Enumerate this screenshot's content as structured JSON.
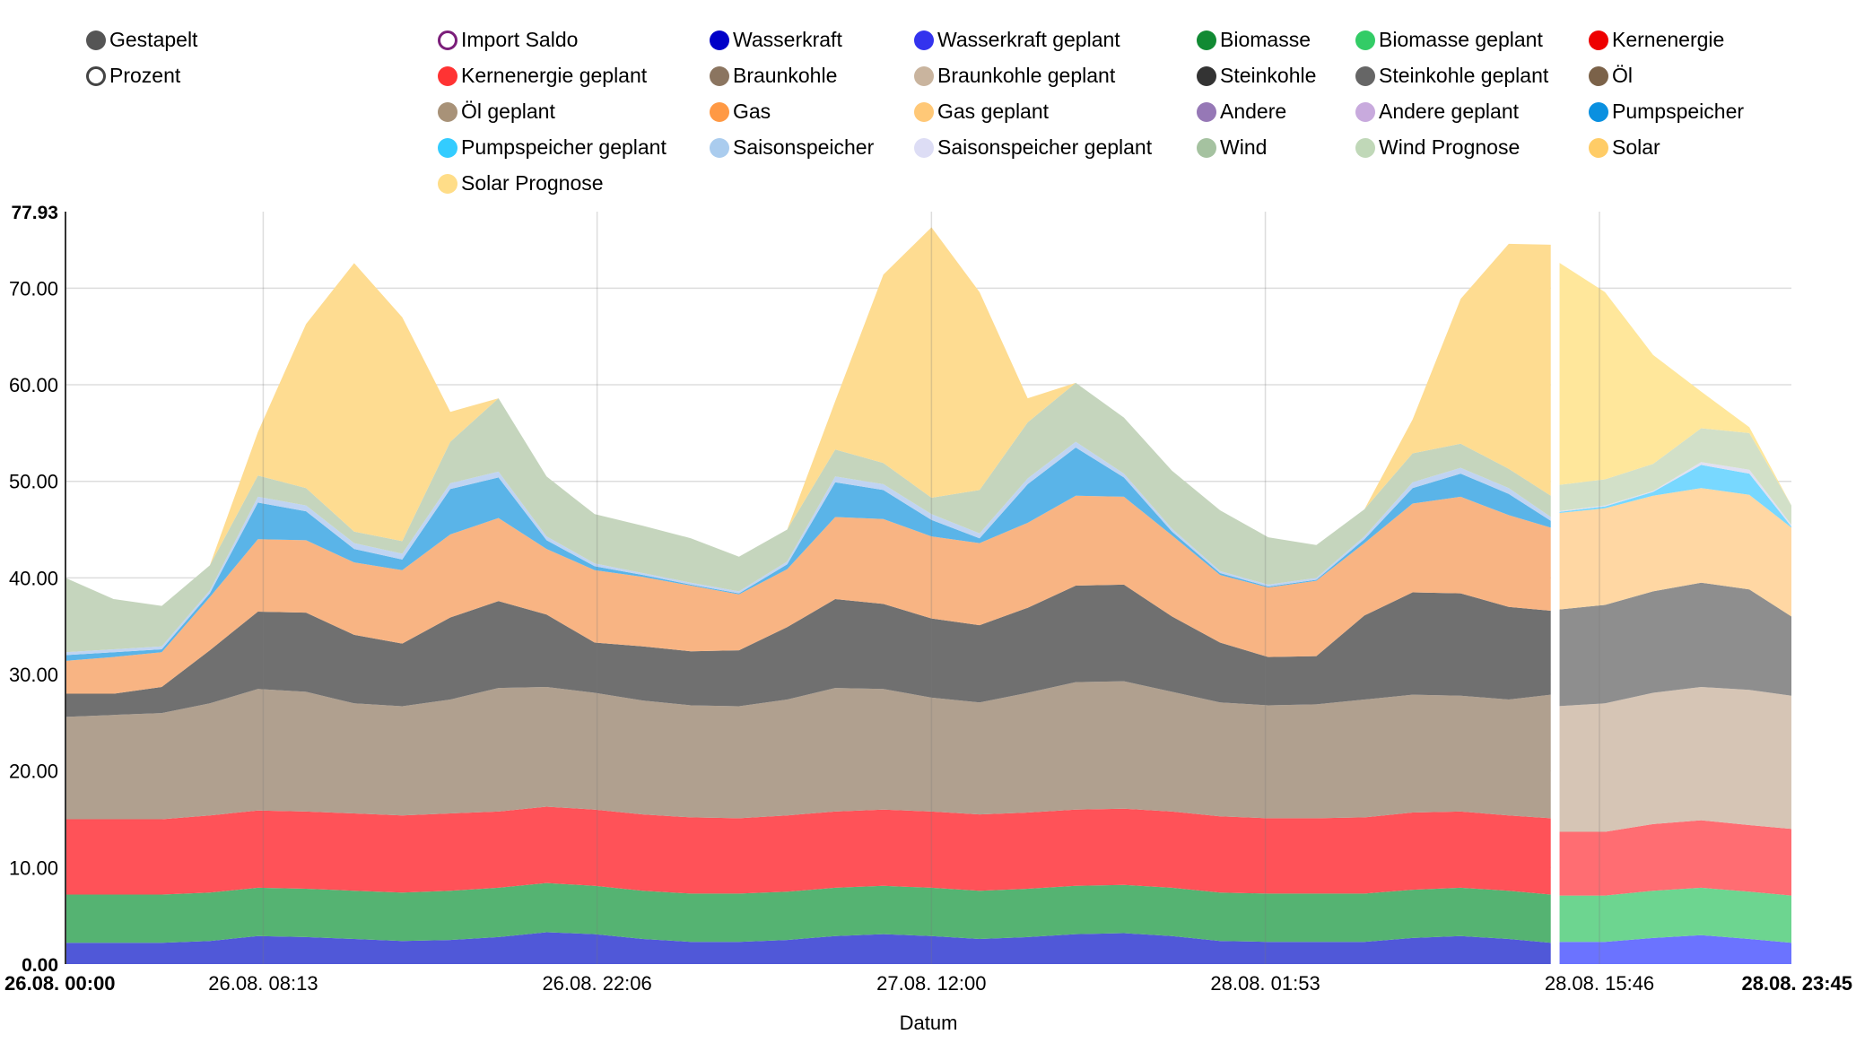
{
  "legend": {
    "toggles": [
      {
        "label": "Gestapelt",
        "color": "#555555",
        "filled": true
      },
      {
        "label": "Prozent",
        "color": "#444444",
        "filled": false
      }
    ],
    "items": [
      {
        "label": "Import Saldo",
        "color": "#7b1e7a",
        "filled": false
      },
      {
        "label": "Wasserkraft",
        "color": "#0000c8"
      },
      {
        "label": "Wasserkraft geplant",
        "color": "#3333ee"
      },
      {
        "label": "Biomasse",
        "color": "#118a33"
      },
      {
        "label": "Biomasse geplant",
        "color": "#33cc66"
      },
      {
        "label": "Kernenergie",
        "color": "#ee0000"
      },
      {
        "label": "Kernenergie geplant",
        "color": "#ff3333"
      },
      {
        "label": "Braunkohle",
        "color": "#8b7560"
      },
      {
        "label": "Braunkohle geplant",
        "color": "#c9b49e"
      },
      {
        "label": "Steinkohle",
        "color": "#333333"
      },
      {
        "label": "Steinkohle geplant",
        "color": "#666666"
      },
      {
        "label": "Öl",
        "color": "#7b6249"
      },
      {
        "label": "Öl geplant",
        "color": "#a89278"
      },
      {
        "label": "Gas",
        "color": "#ff9944"
      },
      {
        "label": "Gas geplant",
        "color": "#ffc877"
      },
      {
        "label": "Andere",
        "color": "#9678b6"
      },
      {
        "label": "Andere geplant",
        "color": "#c8aadd"
      },
      {
        "label": "Pumpspeicher",
        "color": "#0a90e0"
      },
      {
        "label": "Pumpspeicher geplant",
        "color": "#33ccff"
      },
      {
        "label": "Saisonspeicher",
        "color": "#aaccee"
      },
      {
        "label": "Saisonspeicher geplant",
        "color": "#ddddf5"
      },
      {
        "label": "Wind",
        "color": "#a5c2a0"
      },
      {
        "label": "Wind Prognose",
        "color": "#c0d8b8"
      },
      {
        "label": "Solar",
        "color": "#ffcc66"
      },
      {
        "label": "Solar Prognose",
        "color": "#ffdd88"
      }
    ]
  },
  "chart_data": {
    "type": "area",
    "stacked": true,
    "title": "",
    "xlabel": "Datum",
    "ylabel": "",
    "ylim": [
      0,
      77.93
    ],
    "yticks": [
      "0.00",
      "10.00",
      "20.00",
      "30.00",
      "40.00",
      "50.00",
      "60.00",
      "70.00",
      "77.93"
    ],
    "ytick_values": [
      0,
      10,
      20,
      30,
      40,
      50,
      60,
      70,
      77.93
    ],
    "xlim_hours": [
      0,
      71.75
    ],
    "xticks": [
      {
        "label": "26.08. 00:00",
        "hour": 0,
        "bold": true
      },
      {
        "label": "26.08. 08:13",
        "hour": 8.22,
        "bold": false
      },
      {
        "label": "26.08. 22:06",
        "hour": 22.1,
        "bold": false
      },
      {
        "label": "27.08. 12:00",
        "hour": 36,
        "bold": false
      },
      {
        "label": "28.08. 01:53",
        "hour": 49.88,
        "bold": false
      },
      {
        "label": "28.08. 15:46",
        "hour": 63.77,
        "bold": false
      },
      {
        "label": "28.08. 23:45",
        "hour": 71.75,
        "bold": true
      }
    ],
    "grid": true,
    "legend_position": "top",
    "actual": {
      "x_hours": [
        0,
        2,
        4,
        6,
        8,
        10,
        12,
        14,
        16,
        18,
        20,
        22,
        24,
        26,
        28,
        30,
        32,
        34,
        36,
        38,
        40,
        42,
        44,
        46,
        48,
        50,
        52,
        54,
        56,
        58,
        60,
        61.75
      ],
      "series": [
        {
          "name": "Wasserkraft",
          "color": "#5058d8",
          "values": [
            2.2,
            2.2,
            2.2,
            2.4,
            2.9,
            2.8,
            2.6,
            2.4,
            2.5,
            2.8,
            3.3,
            3.1,
            2.6,
            2.3,
            2.3,
            2.5,
            2.9,
            3.1,
            2.9,
            2.6,
            2.8,
            3.1,
            3.2,
            2.9,
            2.4,
            2.3,
            2.3,
            2.3,
            2.7,
            2.9,
            2.6,
            2.2
          ]
        },
        {
          "name": "Biomasse",
          "color": "#55b372",
          "values": [
            5.0,
            5.0,
            5.0,
            5.0,
            5.0,
            5.0,
            5.0,
            5.0,
            5.1,
            5.1,
            5.1,
            5.0,
            5.0,
            5.0,
            5.0,
            5.0,
            5.0,
            5.0,
            5.0,
            5.0,
            5.0,
            5.0,
            5.0,
            5.0,
            5.0,
            5.0,
            5.0,
            5.0,
            5.0,
            5.0,
            5.0,
            5.0
          ]
        },
        {
          "name": "Kernenergie",
          "color": "#ff5258",
          "values": [
            7.8,
            7.8,
            7.8,
            8.0,
            8.0,
            8.0,
            8.0,
            8.0,
            8.0,
            7.9,
            7.9,
            7.9,
            7.9,
            7.9,
            7.8,
            7.9,
            7.9,
            7.9,
            7.9,
            7.9,
            7.9,
            7.9,
            7.9,
            7.9,
            7.9,
            7.8,
            7.8,
            7.9,
            8.0,
            7.9,
            7.8,
            7.9
          ]
        },
        {
          "name": "Braunkohle",
          "color": "#b0a08f",
          "values": [
            10.6,
            10.8,
            11.0,
            11.6,
            12.6,
            12.4,
            11.4,
            11.3,
            11.8,
            12.8,
            12.4,
            12.1,
            11.8,
            11.6,
            11.6,
            12.0,
            12.8,
            12.5,
            11.8,
            11.6,
            12.4,
            13.2,
            13.2,
            12.4,
            11.8,
            11.7,
            11.8,
            12.2,
            12.2,
            12.0,
            12.0,
            12.8
          ]
        },
        {
          "name": "Steinkohle",
          "color": "#707070",
          "values": [
            2.4,
            2.2,
            2.7,
            5.5,
            8.0,
            8.2,
            7.1,
            6.5,
            8.5,
            9.0,
            7.5,
            5.2,
            5.6,
            5.6,
            5.8,
            7.5,
            9.2,
            8.8,
            8.2,
            8.0,
            8.8,
            10.0,
            10.0,
            7.8,
            6.2,
            5.0,
            5.0,
            8.7,
            10.6,
            10.6,
            9.6,
            8.7
          ]
        },
        {
          "name": "Gas",
          "color": "#f8b483",
          "values": [
            3.4,
            3.8,
            3.6,
            5.5,
            7.5,
            7.5,
            7.5,
            7.6,
            8.6,
            8.6,
            6.8,
            7.5,
            7.2,
            6.8,
            5.8,
            6.0,
            8.5,
            8.8,
            8.5,
            8.5,
            8.8,
            9.3,
            9.1,
            8.4,
            7.0,
            7.2,
            7.8,
            7.5,
            9.2,
            10.0,
            9.5,
            8.6
          ]
        },
        {
          "name": "Pumpspeicher",
          "color": "#5ab4e8",
          "values": [
            0.6,
            0.5,
            0.3,
            0.4,
            3.8,
            3.0,
            1.4,
            1.1,
            4.7,
            4.2,
            0.9,
            0.4,
            0.2,
            0.1,
            0.1,
            0.5,
            3.6,
            3.0,
            1.7,
            0.5,
            4.0,
            5.0,
            2.0,
            0.4,
            0.2,
            0.1,
            0.1,
            0.4,
            1.6,
            2.4,
            2.2,
            0.7
          ]
        },
        {
          "name": "Saisonspeicher",
          "color": "#c0d4f2",
          "values": [
            0.3,
            0.3,
            0.3,
            0.3,
            0.6,
            0.6,
            0.6,
            0.6,
            0.6,
            0.6,
            0.4,
            0.3,
            0.2,
            0.2,
            0.2,
            0.3,
            0.6,
            0.6,
            0.6,
            0.5,
            0.6,
            0.6,
            0.4,
            0.3,
            0.2,
            0.2,
            0.2,
            0.3,
            0.6,
            0.6,
            0.6,
            0.4
          ]
        },
        {
          "name": "Wind",
          "color": "#c5d5bd",
          "values": [
            7.7,
            5.2,
            4.2,
            2.6,
            2.2,
            1.8,
            1.2,
            1.3,
            4.3,
            7.6,
            6.2,
            5.1,
            4.9,
            4.6,
            3.6,
            3.3,
            2.8,
            2.2,
            1.7,
            4.5,
            5.8,
            6.1,
            5.8,
            6.0,
            6.3,
            4.9,
            3.4,
            2.8,
            3.0,
            2.5,
            2.0,
            2.2
          ]
        },
        {
          "name": "Solar",
          "color": "#fedc91",
          "values": [
            0,
            0,
            0,
            0,
            4.5,
            17.0,
            27.8,
            23.2,
            3.1,
            0,
            0,
            0,
            0,
            0,
            0,
            0,
            5.0,
            19.5,
            28.0,
            20.5,
            2.5,
            0,
            0,
            0,
            0,
            0,
            0,
            0,
            3.5,
            15.0,
            23.3,
            26.0
          ]
        }
      ]
    },
    "forecast": {
      "x_hours": [
        62,
        64,
        66,
        68,
        70,
        71.75
      ],
      "series": [
        {
          "name": "Wasserkraft geplant",
          "color": "#6b73ff",
          "values": [
            2.3,
            2.3,
            2.7,
            3.0,
            2.6,
            2.2
          ]
        },
        {
          "name": "Biomasse geplant",
          "color": "#6dd590",
          "values": [
            4.8,
            4.8,
            4.9,
            4.9,
            4.9,
            4.9
          ]
        },
        {
          "name": "Kernenergie geplant",
          "color": "#ff6d72",
          "values": [
            6.6,
            6.6,
            6.9,
            7.0,
            6.9,
            6.9
          ]
        },
        {
          "name": "Braunkohle geplant",
          "color": "#d6c5b5",
          "values": [
            13.0,
            13.3,
            13.6,
            13.8,
            14.0,
            13.8
          ]
        },
        {
          "name": "Steinkohle geplant",
          "color": "#8e8e8e",
          "values": [
            10.0,
            10.2,
            10.5,
            10.8,
            10.4,
            8.2
          ]
        },
        {
          "name": "Gas geplant",
          "color": "#ffd7a3",
          "values": [
            10.0,
            10.0,
            9.9,
            9.8,
            9.8,
            9.2
          ]
        },
        {
          "name": "Pumpspeicher geplant",
          "color": "#78d8ff",
          "values": [
            0.1,
            0.2,
            0.4,
            2.4,
            2.2,
            0.1
          ]
        },
        {
          "name": "Saisonspeicher geplant",
          "color": "#e0e0f2",
          "values": [
            0.1,
            0.1,
            0.1,
            0.3,
            0.4,
            0.2
          ]
        },
        {
          "name": "Wind Prognose",
          "color": "#d2e0c8",
          "values": [
            2.7,
            2.7,
            2.8,
            3.5,
            3.8,
            2.0
          ]
        },
        {
          "name": "Solar Prognose",
          "color": "#ffe79b",
          "values": [
            23.2,
            19.4,
            11.3,
            3.8,
            0.6,
            0
          ]
        }
      ]
    }
  }
}
